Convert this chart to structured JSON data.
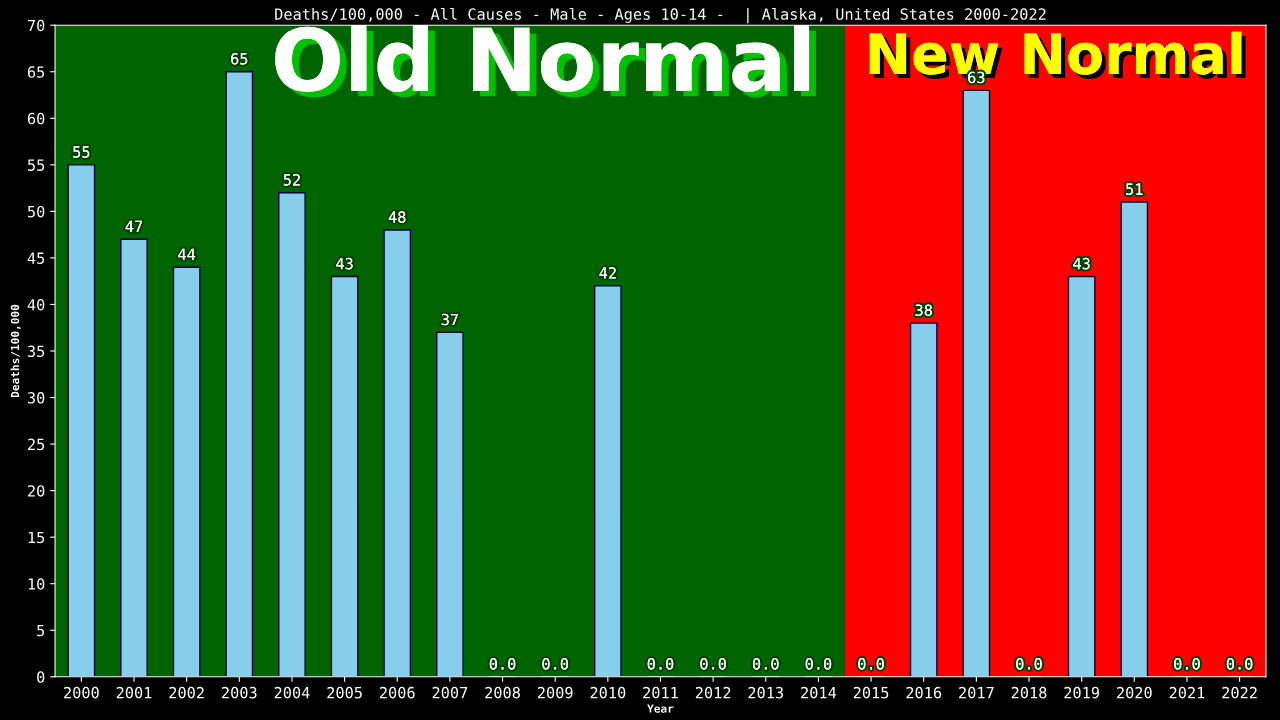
{
  "chart_data": {
    "type": "bar",
    "title": "Deaths/100,000 - All Causes - Male - Ages 10-14 -  | Alaska, United States 2000-2022",
    "xlabel": "Year",
    "ylabel": "Deaths/100,000",
    "categories": [
      "2000",
      "2001",
      "2002",
      "2003",
      "2004",
      "2005",
      "2006",
      "2007",
      "2008",
      "2009",
      "2010",
      "2011",
      "2012",
      "2013",
      "2014",
      "2015",
      "2016",
      "2017",
      "2018",
      "2019",
      "2020",
      "2021",
      "2022"
    ],
    "values": [
      55,
      47,
      44,
      65,
      52,
      43,
      48,
      37,
      0,
      0,
      42,
      0,
      0,
      0,
      0,
      0,
      38,
      63,
      0,
      43,
      51,
      0,
      0
    ],
    "value_labels": [
      "55",
      "47",
      "44",
      "65",
      "52",
      "43",
      "48",
      "37",
      "0.0",
      "0.0",
      "42",
      "0.0",
      "0.0",
      "0.0",
      "0.0",
      "0.0",
      "38",
      "63",
      "0.0",
      "43",
      "51",
      "0.0",
      "0.0"
    ],
    "color": "#87ceeb",
    "ylim": [
      0,
      70
    ],
    "yticks": [
      0,
      5,
      10,
      15,
      20,
      25,
      30,
      35,
      40,
      45,
      50,
      55,
      60,
      65,
      70
    ],
    "bands": [
      {
        "axis": "x",
        "from": "2000",
        "to": "2014",
        "label": "Old Normal",
        "color": "#006400"
      },
      {
        "axis": "x",
        "from": "2015",
        "to": "2022",
        "label": "New Normal",
        "color": "#ff0000"
      }
    ],
    "grid": false,
    "legend": false
  }
}
